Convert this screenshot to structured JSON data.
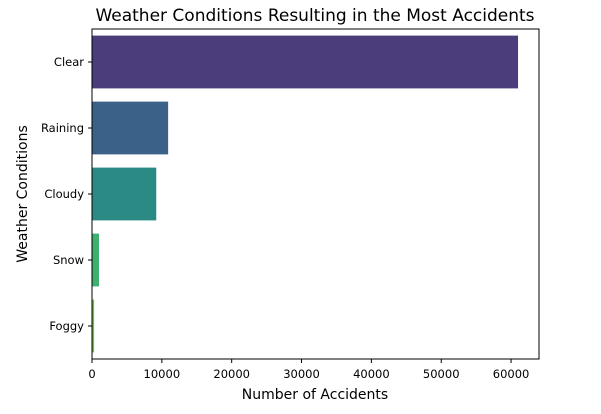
{
  "chart_data": {
    "type": "bar",
    "orientation": "horizontal",
    "title": "Weather Conditions Resulting in the Most Accidents",
    "xlabel": "Number of Accidents",
    "ylabel": "Weather Conditions",
    "categories": [
      "Clear",
      "Raining",
      "Cloudy",
      "Snow",
      "Foggy"
    ],
    "values": [
      61000,
      10900,
      9200,
      1000,
      300
    ],
    "colors": [
      "#4b3d7c",
      "#3b6189",
      "#2b8a83",
      "#3eaf6d",
      "#72bb4d"
    ],
    "xlim": [
      0,
      64000
    ],
    "xticks": [
      0,
      10000,
      20000,
      30000,
      40000,
      50000,
      60000
    ],
    "xtick_labels": [
      "0",
      "10000",
      "20000",
      "30000",
      "40000",
      "50000",
      "60000"
    ],
    "grid": false,
    "legend": "none"
  }
}
